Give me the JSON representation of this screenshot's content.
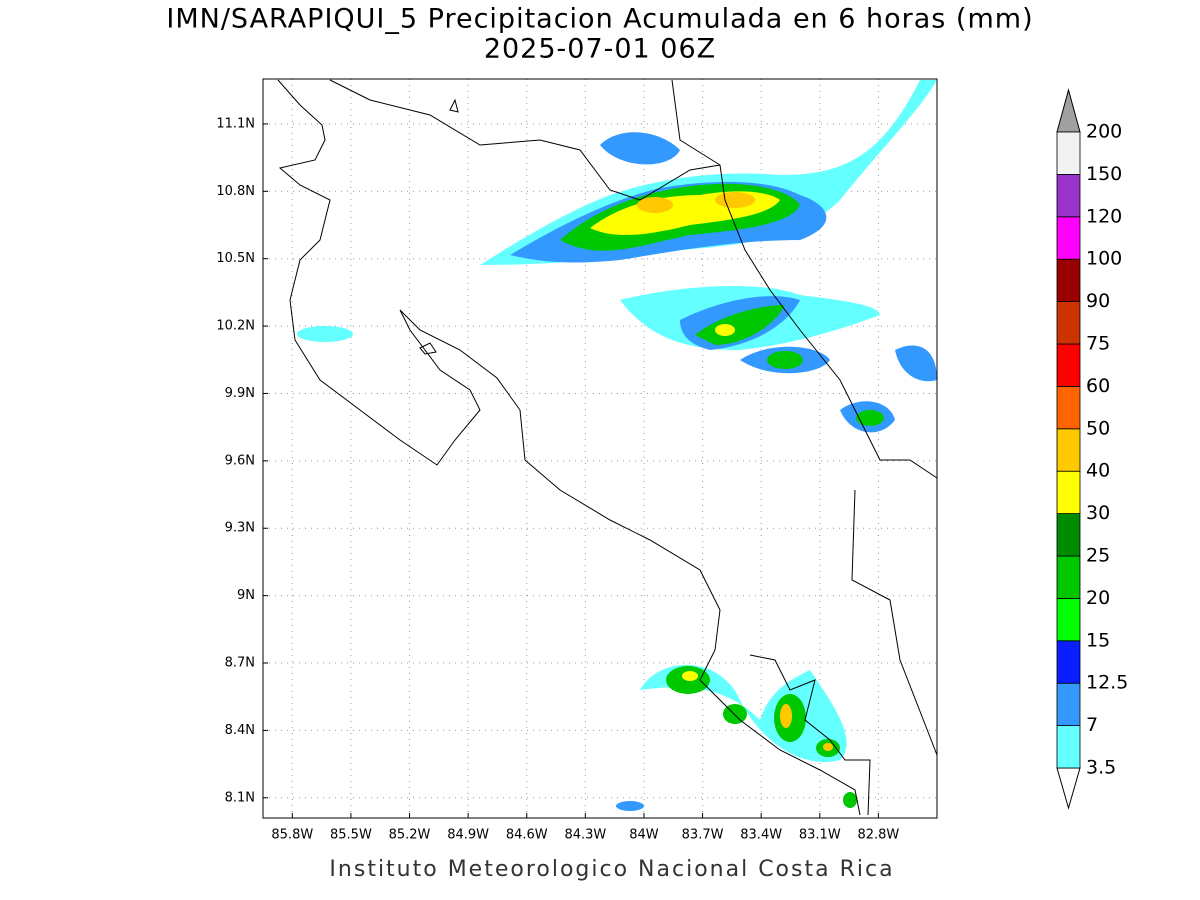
{
  "title": [
    "IMN/SARAPIQUI_5 Precipitacion Acumulada en 6 horas (mm)",
    "2025-07-01 06Z"
  ],
  "xlim": [
    -85.95,
    -82.5
  ],
  "ylim": [
    8.01,
    11.3
  ],
  "xticks": [
    {
      "value": -85.8,
      "label": "85.8W"
    },
    {
      "value": -85.5,
      "label": "85.5W"
    },
    {
      "value": -85.2,
      "label": "85.2W"
    },
    {
      "value": -84.9,
      "label": "84.9W"
    },
    {
      "value": -84.6,
      "label": "84.6W"
    },
    {
      "value": -84.3,
      "label": "84.3W"
    },
    {
      "value": -84,
      "label": "84W"
    },
    {
      "value": -83.7,
      "label": "83.7W"
    },
    {
      "value": -83.4,
      "label": "83.4W"
    },
    {
      "value": -83.1,
      "label": "83.1W"
    },
    {
      "value": -82.8,
      "label": "82.8W"
    }
  ],
  "yticks": [
    {
      "value": 11.1,
      "label": "11.1N"
    },
    {
      "value": 10.8,
      "label": "10.8N"
    },
    {
      "value": 10.5,
      "label": "10.5N"
    },
    {
      "value": 10.2,
      "label": "10.2N"
    },
    {
      "value": 9.9,
      "label": "9.9N"
    },
    {
      "value": 9.6,
      "label": "9.6N"
    },
    {
      "value": 9.3,
      "label": "9.3N"
    },
    {
      "value": 9,
      "label": "9N"
    },
    {
      "value": 8.7,
      "label": "8.7N"
    },
    {
      "value": 8.4,
      "label": "8.4N"
    },
    {
      "value": 8.1,
      "label": "8.1N"
    }
  ],
  "grid": true,
  "colorbar": {
    "levels": [
      3.5,
      7,
      12.5,
      15,
      20,
      25,
      30,
      40,
      50,
      60,
      75,
      90,
      100,
      120,
      150,
      200
    ],
    "colors": [
      "#64ffff",
      "#3399ff",
      "#0a1eff",
      "#00ff00",
      "#00c800",
      "#008c00",
      "#ffff00",
      "#ffc800",
      "#ff6400",
      "#ff0000",
      "#cc3300",
      "#990000",
      "#ff00ff",
      "#9933cc",
      "#f2f2f2"
    ],
    "under_color": "#ffffff",
    "over_color": "#a0a0a0"
  },
  "footer": "Instituto Meteorologico Nacional Costa Rica"
}
